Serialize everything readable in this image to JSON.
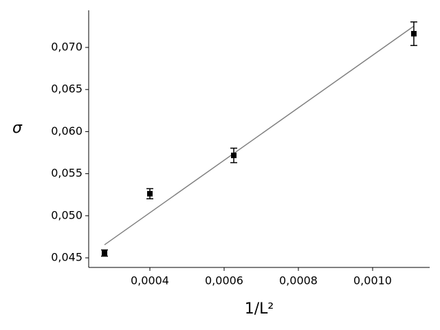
{
  "chart_data": {
    "type": "scatter",
    "xlabel": "1/L²",
    "ylabel": "σ",
    "points": {
      "x": [
        0.0002778,
        0.0004,
        0.000626,
        0.001111
      ],
      "values": [
        0.04557,
        0.05262,
        0.05717,
        0.07163
      ],
      "errors": [
        0.00037,
        0.0006,
        0.00086,
        0.0014
      ],
      "color": "#000000"
    },
    "fit": {
      "x": [
        0.0002778,
        0.001111
      ],
      "values": [
        0.04655,
        0.07253
      ],
      "color": "#808080"
    },
    "xlim": [
      0.0002352,
      0.0011537
    ],
    "xticks": [
      {
        "value": 0.0004,
        "label": "0,0004"
      },
      {
        "value": 0.0006,
        "label": "0,0006"
      },
      {
        "value": 0.0008,
        "label": "0,0008"
      },
      {
        "value": 0.001,
        "label": "0,0010"
      }
    ],
    "ylim": [
      0.04386,
      0.07441
    ],
    "yticks": [
      {
        "value": 0.045,
        "label": "0,045"
      },
      {
        "value": 0.05,
        "label": "0,050"
      },
      {
        "value": 0.055,
        "label": "0,055"
      },
      {
        "value": 0.06,
        "label": "0,060"
      },
      {
        "value": 0.065,
        "label": "0,065"
      },
      {
        "value": 0.07,
        "label": "0,070"
      }
    ]
  }
}
